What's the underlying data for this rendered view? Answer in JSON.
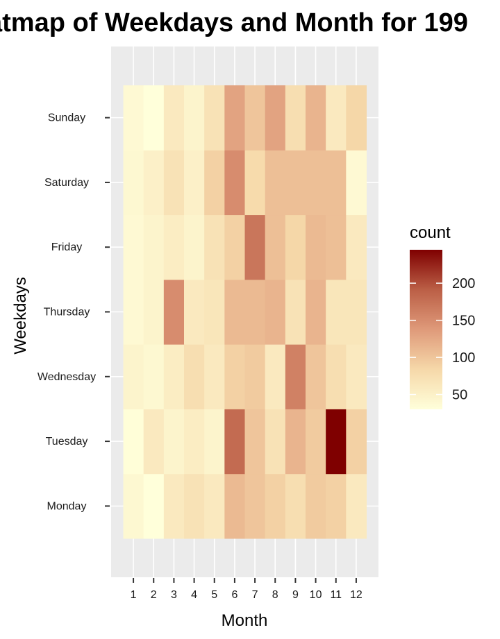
{
  "chart_data": {
    "type": "heatmap",
    "title": "atmap of Weekdays and Month for 199",
    "xlabel": "Month",
    "ylabel": "Weekdays",
    "x_categories": [
      "1",
      "2",
      "3",
      "4",
      "5",
      "6",
      "7",
      "8",
      "9",
      "10",
      "11",
      "12"
    ],
    "y_categories": [
      "Monday",
      "Tuesday",
      "Wednesday",
      "Thursday",
      "Friday",
      "Saturday",
      "Sunday"
    ],
    "values": [
      [
        40,
        30,
        60,
        70,
        60,
        110,
        100,
        90,
        75,
        95,
        90,
        60
      ],
      [
        32,
        60,
        45,
        55,
        45,
        180,
        100,
        70,
        115,
        95,
        245,
        90
      ],
      [
        45,
        40,
        55,
        75,
        60,
        90,
        95,
        60,
        160,
        100,
        75,
        60
      ],
      [
        38,
        45,
        150,
        60,
        65,
        110,
        110,
        115,
        70,
        115,
        65,
        65
      ],
      [
        38,
        45,
        55,
        45,
        70,
        90,
        170,
        105,
        85,
        110,
        105,
        60
      ],
      [
        40,
        50,
        70,
        50,
        90,
        150,
        80,
        105,
        105,
        105,
        105,
        38
      ],
      [
        38,
        30,
        60,
        45,
        70,
        130,
        100,
        130,
        75,
        115,
        60,
        85
      ]
    ],
    "legend": {
      "title": "count",
      "breaks": [
        50,
        100,
        150,
        200
      ],
      "range": [
        30,
        245
      ],
      "colors": [
        "#FFFFDA",
        "#F6D8A9",
        "#DF9A7A",
        "#BB5F46",
        "#7F0000"
      ]
    },
    "grid": true,
    "legend_position": "right"
  }
}
